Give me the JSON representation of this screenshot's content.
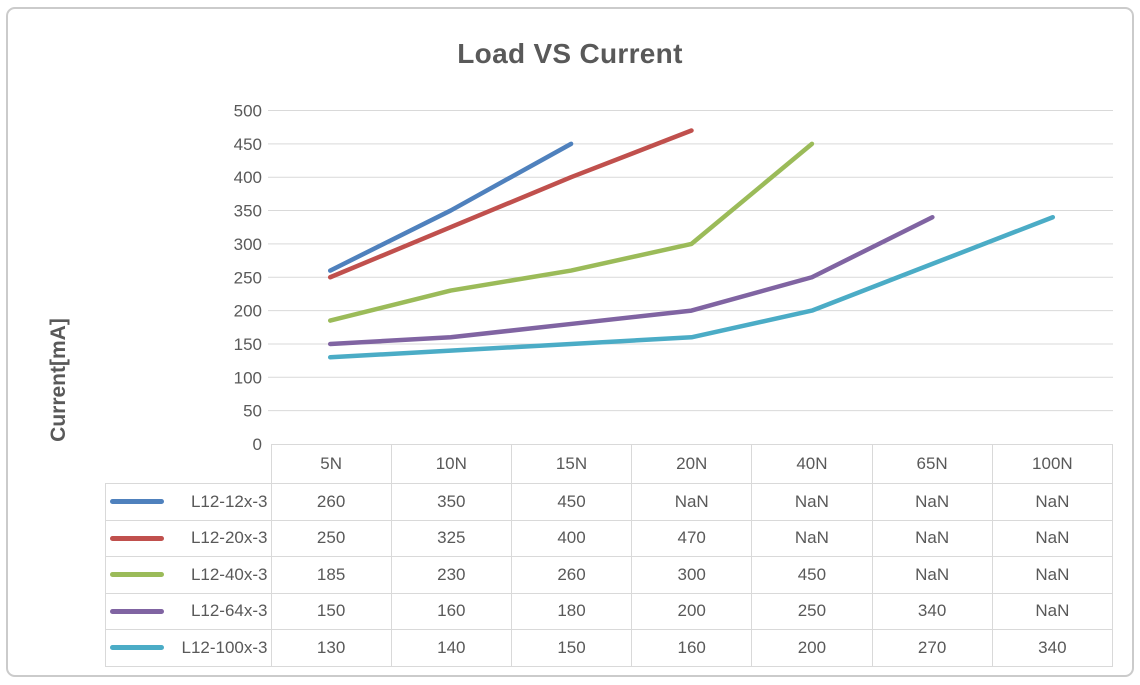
{
  "chart_data": {
    "type": "line",
    "title": "Load VS Current",
    "ylabel": "Current[mA]",
    "xlabel": "",
    "categories": [
      "5N",
      "10N",
      "15N",
      "20N",
      "40N",
      "65N",
      "100N"
    ],
    "series": [
      {
        "name": "L12-12x-3",
        "color": "#4F81BD",
        "values": [
          260,
          350,
          450,
          null,
          null,
          null,
          null
        ]
      },
      {
        "name": "L12-20x-3",
        "color": "#C0504D",
        "values": [
          250,
          325,
          400,
          470,
          null,
          null,
          null
        ]
      },
      {
        "name": "L12-40x-3",
        "color": "#9BBB59",
        "values": [
          185,
          230,
          260,
          300,
          450,
          null,
          null
        ]
      },
      {
        "name": "L12-64x-3",
        "color": "#8064A2",
        "values": [
          150,
          160,
          180,
          200,
          250,
          340,
          null
        ]
      },
      {
        "name": "L12-100x-3",
        "color": "#4BACC6",
        "values": [
          130,
          140,
          150,
          160,
          200,
          270,
          340
        ]
      }
    ],
    "ylim": [
      0,
      500
    ],
    "yticks": [
      0,
      50,
      100,
      150,
      200,
      250,
      300,
      350,
      400,
      450,
      500
    ],
    "nan_label": "NaN",
    "grid": true,
    "legend_position": "table-left",
    "text_color": "#595959",
    "grid_color": "#D9D9D9",
    "panel_border_color": "#CBCBCB"
  }
}
